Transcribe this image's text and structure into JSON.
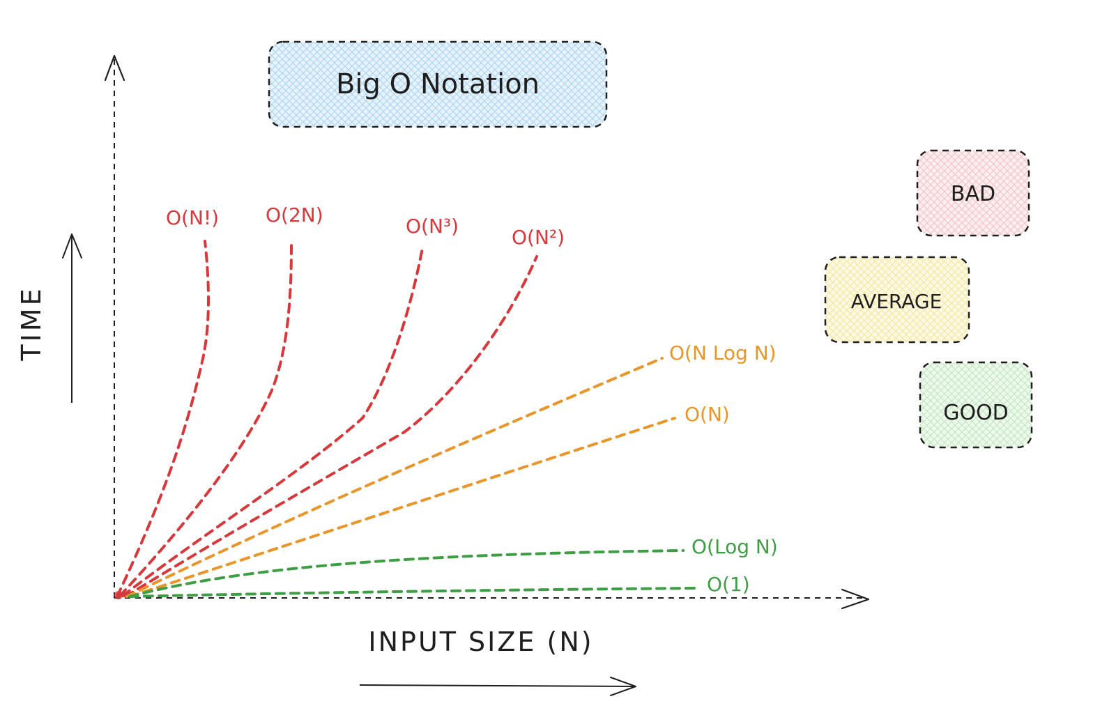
{
  "title": "Big O Notation",
  "axes": {
    "y_label": "TIME",
    "x_label": "INPUT SIZE (N)"
  },
  "curves": [
    {
      "label": "O(N!)",
      "class": "bad",
      "color": "#d6383b"
    },
    {
      "label": "O(2N)",
      "class": "bad",
      "color": "#d6383b"
    },
    {
      "label": "O(N³)",
      "class": "bad",
      "color": "#d6383b"
    },
    {
      "label": "O(N²)",
      "class": "bad",
      "color": "#d6383b"
    },
    {
      "label": "O(N Log N)",
      "class": "average",
      "color": "#e8962a"
    },
    {
      "label": "O(N)",
      "class": "average",
      "color": "#e8962a"
    },
    {
      "label": "O(Log N)",
      "class": "good",
      "color": "#3d9e44"
    },
    {
      "label": "O(1)",
      "class": "good",
      "color": "#3d9e44"
    }
  ],
  "legend": {
    "bad": {
      "label": "BAD",
      "fill": "#f7c9cc"
    },
    "average": {
      "label": "AVERAGE",
      "fill": "#fbefb0"
    },
    "good": {
      "label": "GOOD",
      "fill": "#c9ecc6"
    }
  },
  "colors": {
    "bad": "#d6383b",
    "average": "#e8962a",
    "good": "#3d9e44",
    "title_fill": "#bfe0f6",
    "ink": "#1e1e1e"
  }
}
